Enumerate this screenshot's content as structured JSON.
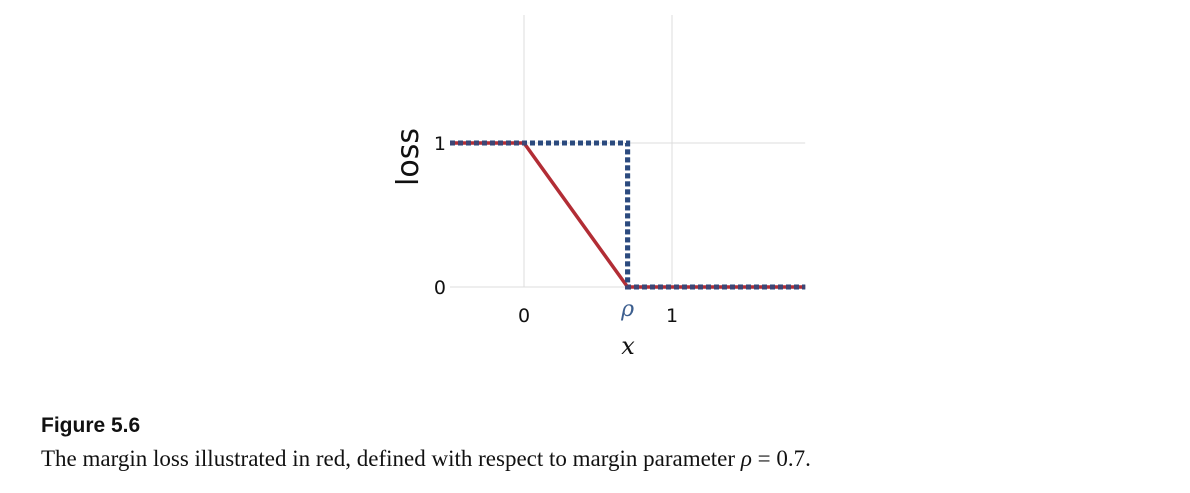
{
  "chart_data": {
    "type": "line",
    "title": "",
    "xlabel": "x",
    "ylabel": "loss",
    "xlim": [
      -0.5,
      1.9
    ],
    "ylim": [
      0,
      1
    ],
    "grid": true,
    "x_ticks": [
      {
        "value": 0,
        "label": "0"
      },
      {
        "value": 0.7,
        "label": "ρ"
      },
      {
        "value": 1,
        "label": "1"
      }
    ],
    "y_ticks": [
      {
        "value": 0,
        "label": "0"
      },
      {
        "value": 1,
        "label": "1"
      }
    ],
    "rho": 0.7,
    "series": [
      {
        "style": "dotted",
        "color": "#2b4a7e",
        "x": [
          -0.5,
          0.7,
          0.7,
          1.9
        ],
        "y": [
          1,
          1,
          0,
          0
        ]
      },
      {
        "style": "solid",
        "color": "#b22d35",
        "x": [
          -0.5,
          0,
          0.7,
          1.9
        ],
        "y": [
          1,
          1,
          0,
          0
        ]
      }
    ]
  },
  "caption": {
    "figure_label": "Figure  5.6",
    "text_before": "The margin loss illustrated in red, defined with respect to margin parameter ",
    "symbol": "ρ",
    "text_after": " = 0.7."
  }
}
